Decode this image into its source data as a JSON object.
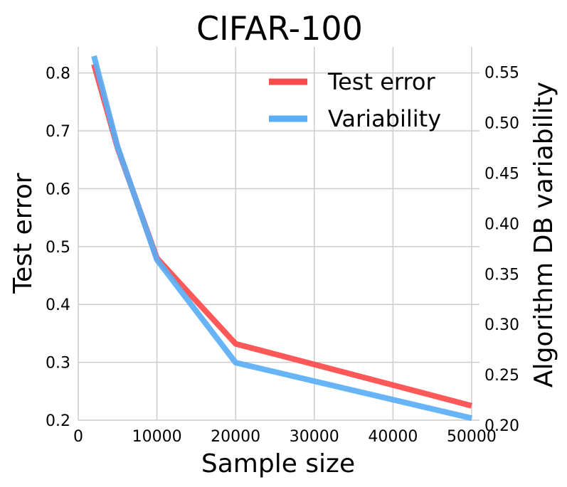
{
  "chart_data": {
    "type": "line",
    "title": "CIFAR-100",
    "xlabel": "Sample size",
    "ylabel": "Test error",
    "ylabel_right": "Algorithm DB variability",
    "xlim": [
      0,
      51000
    ],
    "ylim": [
      0.2,
      0.845
    ],
    "ylim_right": [
      0.205,
      0.575
    ],
    "x_ticks": [
      0,
      10000,
      20000,
      30000,
      40000,
      50000
    ],
    "x_tick_labels": [
      "0",
      "10000",
      "20000",
      "30000",
      "40000",
      "50000"
    ],
    "y_ticks": [
      0.2,
      0.3,
      0.4,
      0.5,
      0.6,
      0.7,
      0.8
    ],
    "y_tick_labels": [
      "0.2",
      "0.3",
      "0.4",
      "0.5",
      "0.6",
      "0.7",
      "0.8"
    ],
    "y_ticks_right": [
      0.2,
      0.25,
      0.3,
      0.35,
      0.4,
      0.45,
      0.5,
      0.55
    ],
    "y_tick_labels_right": [
      "0.20",
      "0.25",
      "0.30",
      "0.35",
      "0.40",
      "0.45",
      "0.50",
      "0.55"
    ],
    "grid": true,
    "legend_position": "top-right",
    "series": [
      {
        "name": "Test error",
        "axis": "left",
        "color": "#ff4a4a",
        "x": [
          2000,
          5000,
          10000,
          20000,
          50000
        ],
        "y": [
          0.815,
          0.67,
          0.48,
          0.332,
          0.225
        ]
      },
      {
        "name": "Variability",
        "axis": "right",
        "color": "#5aaef5",
        "x": [
          2000,
          5000,
          10000,
          20000,
          50000
        ],
        "y": [
          0.566,
          0.476,
          0.364,
          0.262,
          0.207
        ]
      }
    ]
  }
}
